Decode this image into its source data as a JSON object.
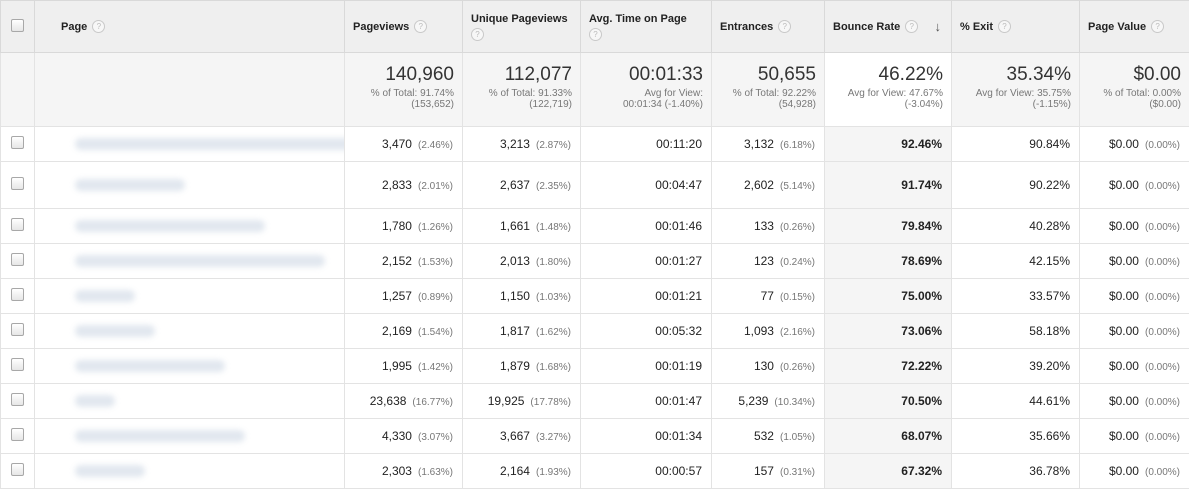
{
  "columns": {
    "page": "Page",
    "pageviews": "Pageviews",
    "unique": "Unique Pageviews",
    "avg_time": "Avg. Time on Page",
    "entrances": "Entrances",
    "bounce": "Bounce Rate",
    "exit": "% Exit",
    "value": "Page Value",
    "help_glyph": "?",
    "sort_glyph": "↓"
  },
  "totals": {
    "pageviews": {
      "value": "140,960",
      "l1": "% of Total: 91.74%",
      "l2": "(153,652)"
    },
    "unique": {
      "value": "112,077",
      "l1": "% of Total: 91.33%",
      "l2": "(122,719)"
    },
    "avg_time": {
      "value": "00:01:33",
      "l1": "Avg for View:",
      "l2": "00:01:34 (-1.40%)"
    },
    "entrances": {
      "value": "50,655",
      "l1": "% of Total: 92.22%",
      "l2": "(54,928)"
    },
    "bounce": {
      "value": "46.22%",
      "l1": "Avg for View: 47.67%",
      "l2": "(-3.04%)"
    },
    "exit": {
      "value": "35.34%",
      "l1": "Avg for View: 35.75%",
      "l2": "(-1.15%)"
    },
    "value": {
      "value": "$0.00",
      "l1": "% of Total: 0.00%",
      "l2": "($0.00)"
    }
  },
  "rows": [
    {
      "pv": "3,470",
      "pvp": "(2.46%)",
      "up": "3,213",
      "upp": "(2.87%)",
      "t": "00:11:20",
      "en": "3,132",
      "enp": "(6.18%)",
      "br": "92.46%",
      "ex": "90.84%",
      "val": "$0.00",
      "valp": "(0.00%)"
    },
    {
      "pv": "2,833",
      "pvp": "(2.01%)",
      "up": "2,637",
      "upp": "(2.35%)",
      "t": "00:04:47",
      "en": "2,602",
      "enp": "(5.14%)",
      "br": "91.74%",
      "ex": "90.22%",
      "val": "$0.00",
      "valp": "(0.00%)"
    },
    {
      "pv": "1,780",
      "pvp": "(1.26%)",
      "up": "1,661",
      "upp": "(1.48%)",
      "t": "00:01:46",
      "en": "133",
      "enp": "(0.26%)",
      "br": "79.84%",
      "ex": "40.28%",
      "val": "$0.00",
      "valp": "(0.00%)"
    },
    {
      "pv": "2,152",
      "pvp": "(1.53%)",
      "up": "2,013",
      "upp": "(1.80%)",
      "t": "00:01:27",
      "en": "123",
      "enp": "(0.24%)",
      "br": "78.69%",
      "ex": "42.15%",
      "val": "$0.00",
      "valp": "(0.00%)"
    },
    {
      "pv": "1,257",
      "pvp": "(0.89%)",
      "up": "1,150",
      "upp": "(1.03%)",
      "t": "00:01:21",
      "en": "77",
      "enp": "(0.15%)",
      "br": "75.00%",
      "ex": "33.57%",
      "val": "$0.00",
      "valp": "(0.00%)"
    },
    {
      "pv": "2,169",
      "pvp": "(1.54%)",
      "up": "1,817",
      "upp": "(1.62%)",
      "t": "00:05:32",
      "en": "1,093",
      "enp": "(2.16%)",
      "br": "73.06%",
      "ex": "58.18%",
      "val": "$0.00",
      "valp": "(0.00%)"
    },
    {
      "pv": "1,995",
      "pvp": "(1.42%)",
      "up": "1,879",
      "upp": "(1.68%)",
      "t": "00:01:19",
      "en": "130",
      "enp": "(0.26%)",
      "br": "72.22%",
      "ex": "39.20%",
      "val": "$0.00",
      "valp": "(0.00%)"
    },
    {
      "pv": "23,638",
      "pvp": "(16.77%)",
      "up": "19,925",
      "upp": "(17.78%)",
      "t": "00:01:47",
      "en": "5,239",
      "enp": "(10.34%)",
      "br": "70.50%",
      "ex": "44.61%",
      "val": "$0.00",
      "valp": "(0.00%)"
    },
    {
      "pv": "4,330",
      "pvp": "(3.07%)",
      "up": "3,667",
      "upp": "(3.27%)",
      "t": "00:01:34",
      "en": "532",
      "enp": "(1.05%)",
      "br": "68.07%",
      "ex": "35.66%",
      "val": "$0.00",
      "valp": "(0.00%)"
    },
    {
      "pv": "2,303",
      "pvp": "(1.63%)",
      "up": "2,164",
      "upp": "(1.93%)",
      "t": "00:00:57",
      "en": "157",
      "enp": "(0.31%)",
      "br": "67.32%",
      "ex": "36.78%",
      "val": "$0.00",
      "valp": "(0.00%)"
    }
  ],
  "colors": {
    "header_bg": "#efefef",
    "totals_bg": "#f5f5f5",
    "border": "#e3e3e3",
    "redacted": "#dce3ec"
  }
}
